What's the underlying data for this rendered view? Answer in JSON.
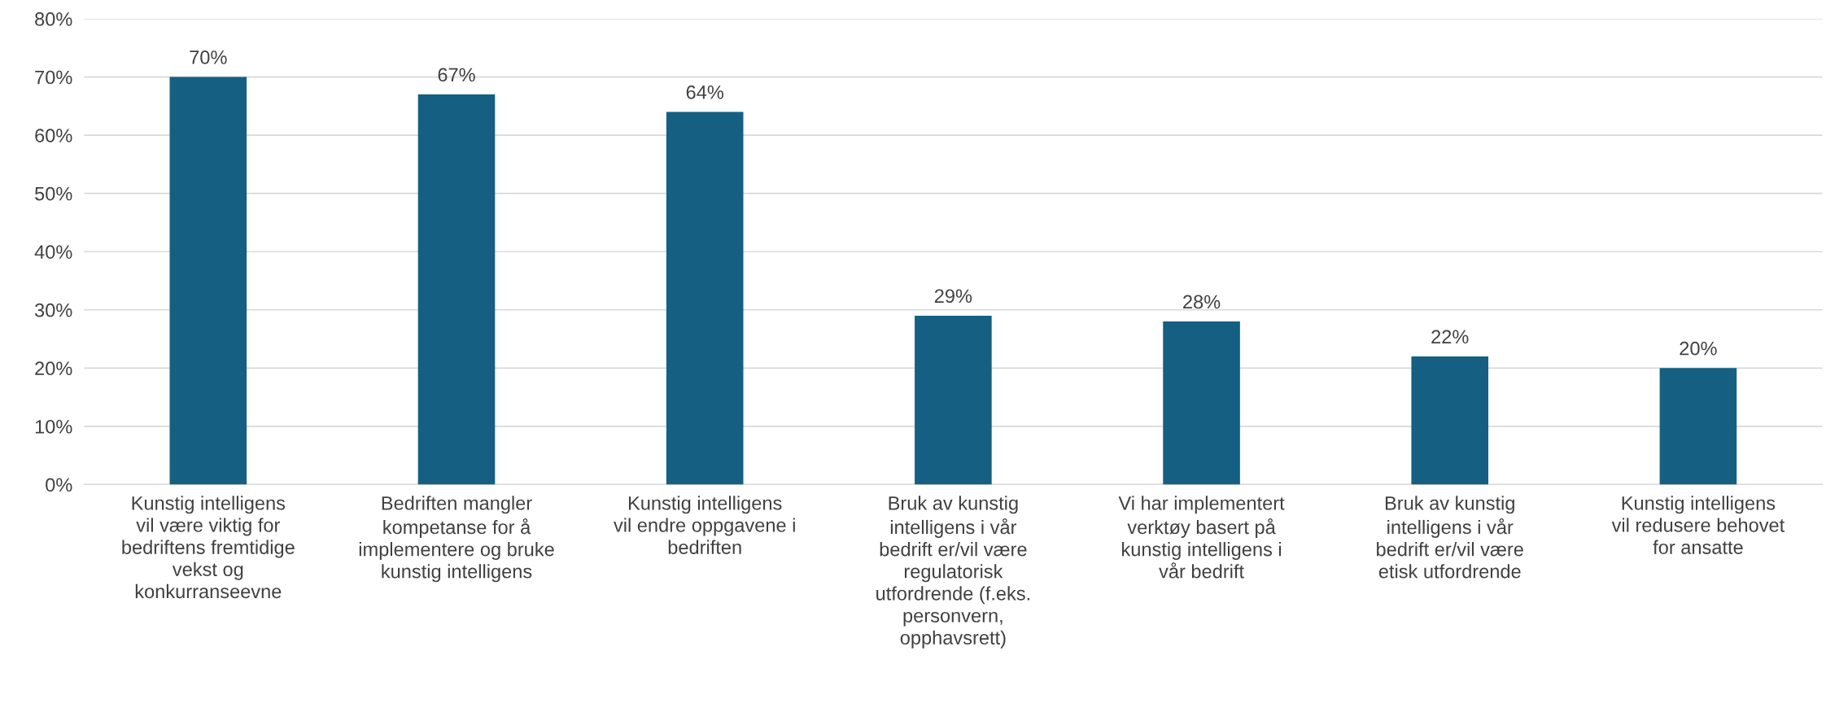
{
  "chart_data": {
    "type": "bar",
    "categories": [
      "Kunstig intelligens vil være viktig for bedriftens fremtidige vekst og konkurranseevne",
      "Bedriften mangler kompetanse for å implementere og bruke kunstig intelligens",
      "Kunstig intelligens vil endre oppgavene i bedriften",
      "Bruk av kunstig intelligens i vår bedrift er/vil være regulatorisk utfordrende (f.eks. personvern, opphavsrett)",
      "Vi har implementert verktøy basert på kunstig intelligens i vår bedrift",
      "Bruk av kunstig intelligens i vår bedrift er/vil være etisk utfordrende",
      "Kunstig intelligens vil redusere behovet for ansatte"
    ],
    "values": [
      0.7,
      0.67,
      0.64,
      0.29,
      0.28,
      0.22,
      0.2
    ],
    "value_labels": [
      "70%",
      "67%",
      "64%",
      "29%",
      "28%",
      "22%",
      "20%"
    ],
    "color": "#156082",
    "ylim": [
      0,
      0.8
    ],
    "yticks": [
      {
        "value": 0,
        "label": "0%"
      },
      {
        "value": 0.1,
        "label": "10%"
      },
      {
        "value": 0.2,
        "label": "20%"
      },
      {
        "value": 0.3,
        "label": "30%"
      },
      {
        "value": 0.4,
        "label": "40%"
      },
      {
        "value": 0.5,
        "label": "50%"
      },
      {
        "value": 0.6,
        "label": "60%"
      },
      {
        "value": 0.7,
        "label": "70%"
      },
      {
        "value": 0.8,
        "label": "80%"
      }
    ],
    "grid": "y"
  }
}
